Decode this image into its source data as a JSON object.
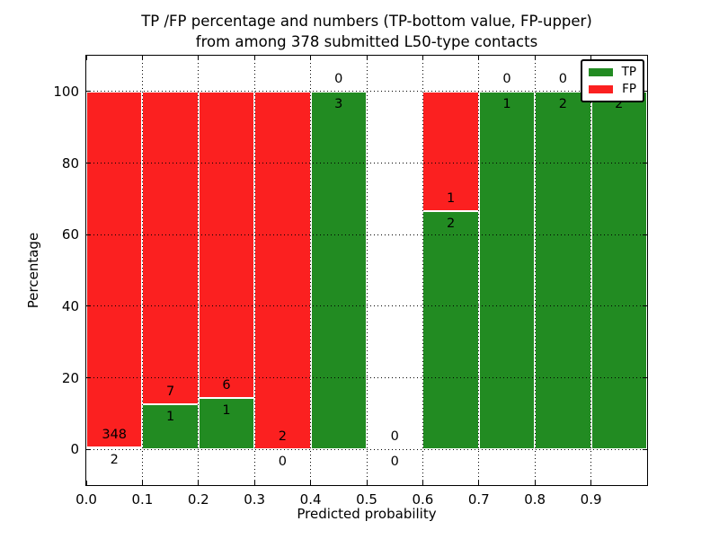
{
  "figure": {
    "title_line1": "TP /FP percentage and numbers (TP-bottom value, FP-upper)",
    "title_line2": "from among 378 submitted L50-type contacts",
    "xlabel": "Predicted probability",
    "ylabel": "Percentage",
    "legend": {
      "items": [
        {
          "label": "TP",
          "color": "#228b22"
        },
        {
          "label": "FP",
          "color": "#fb2020"
        }
      ]
    },
    "colors": {
      "tp": "#228b22",
      "fp": "#fb2020",
      "grid": "#000000",
      "background": "#ffffff"
    }
  },
  "chart_data": {
    "type": "bar",
    "stacked": true,
    "title": "TP /FP percentage and numbers (TP-bottom value, FP-upper)\nfrom among 378 submitted L50-type contacts",
    "xlabel": "Predicted probability",
    "ylabel": "Percentage",
    "total_submitted_contacts": 378,
    "contact_type": "L50",
    "xlim": [
      0.0,
      1.0
    ],
    "ylim": [
      -10,
      110
    ],
    "x_tick_values": [
      0.0,
      0.1,
      0.2,
      0.3,
      0.4,
      0.5,
      0.6,
      0.7,
      0.8,
      0.9
    ],
    "x_tick_labels": [
      "0.0",
      "0.1",
      "0.2",
      "0.3",
      "0.4",
      "0.5",
      "0.6",
      "0.7",
      "0.8",
      "0.9"
    ],
    "y_tick_values": [
      0,
      20,
      40,
      60,
      80,
      100
    ],
    "y_tick_labels": [
      "0",
      "20",
      "40",
      "60",
      "80",
      "100"
    ],
    "legend_position": "upper right",
    "grid": true,
    "series": [
      {
        "name": "TP",
        "color": "#228b22"
      },
      {
        "name": "FP",
        "color": "#fb2020"
      }
    ],
    "bins": [
      {
        "range": [
          0.0,
          0.1
        ],
        "tp_count": 2,
        "fp_count": 348,
        "tp_pct": 0.57,
        "fp_pct": 99.43
      },
      {
        "range": [
          0.1,
          0.2
        ],
        "tp_count": 1,
        "fp_count": 7,
        "tp_pct": 12.5,
        "fp_pct": 87.5
      },
      {
        "range": [
          0.2,
          0.3
        ],
        "tp_count": 1,
        "fp_count": 6,
        "tp_pct": 14.29,
        "fp_pct": 85.71
      },
      {
        "range": [
          0.3,
          0.4
        ],
        "tp_count": 0,
        "fp_count": 2,
        "tp_pct": 0,
        "fp_pct": 100
      },
      {
        "range": [
          0.4,
          0.5
        ],
        "tp_count": 3,
        "fp_count": 0,
        "tp_pct": 100,
        "fp_pct": 0
      },
      {
        "range": [
          0.5,
          0.6
        ],
        "tp_count": 0,
        "fp_count": 0,
        "tp_pct": 0,
        "fp_pct": 0
      },
      {
        "range": [
          0.6,
          0.7
        ],
        "tp_count": 2,
        "fp_count": 1,
        "tp_pct": 66.67,
        "fp_pct": 33.33
      },
      {
        "range": [
          0.7,
          0.8
        ],
        "tp_count": 1,
        "fp_count": 0,
        "tp_pct": 100,
        "fp_pct": 0
      },
      {
        "range": [
          0.8,
          0.9
        ],
        "tp_count": 2,
        "fp_count": 0,
        "tp_pct": 100,
        "fp_pct": 0
      },
      {
        "range": [
          0.9,
          1.0
        ],
        "tp_count": 2,
        "fp_count": 0,
        "tp_pct": 100,
        "fp_pct": 0
      }
    ]
  }
}
